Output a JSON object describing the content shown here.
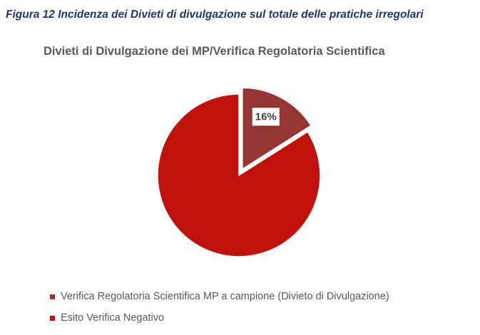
{
  "figure_caption": "Figura 12 Incidenza dei Divieti di divulgazione sul totale delle pratiche irregolari",
  "chart_data": {
    "type": "pie",
    "title": "Divieti di Divulgazione dei MP/Verifica Regolatoria Scientifica",
    "slices": [
      {
        "name": "Verifica Regolatoria Scientifica MP a campione (Divieto di Divulgazione)",
        "value": 16,
        "label": "16%",
        "color": "#943634",
        "exploded": true
      },
      {
        "name": "Esito Verifica Negativo",
        "value": 84,
        "label": "",
        "color": "#c0120c",
        "exploded": false
      }
    ],
    "legend_position": "bottom",
    "start_angle_deg": 0,
    "direction": "clockwise"
  },
  "legend": [
    {
      "label": "Verifica Regolatoria Scientifica MP a campione (Divieto di Divulgazione)",
      "color": "#943634"
    },
    {
      "label": "Esito Verifica Negativo",
      "color": "#c0120c"
    }
  ]
}
